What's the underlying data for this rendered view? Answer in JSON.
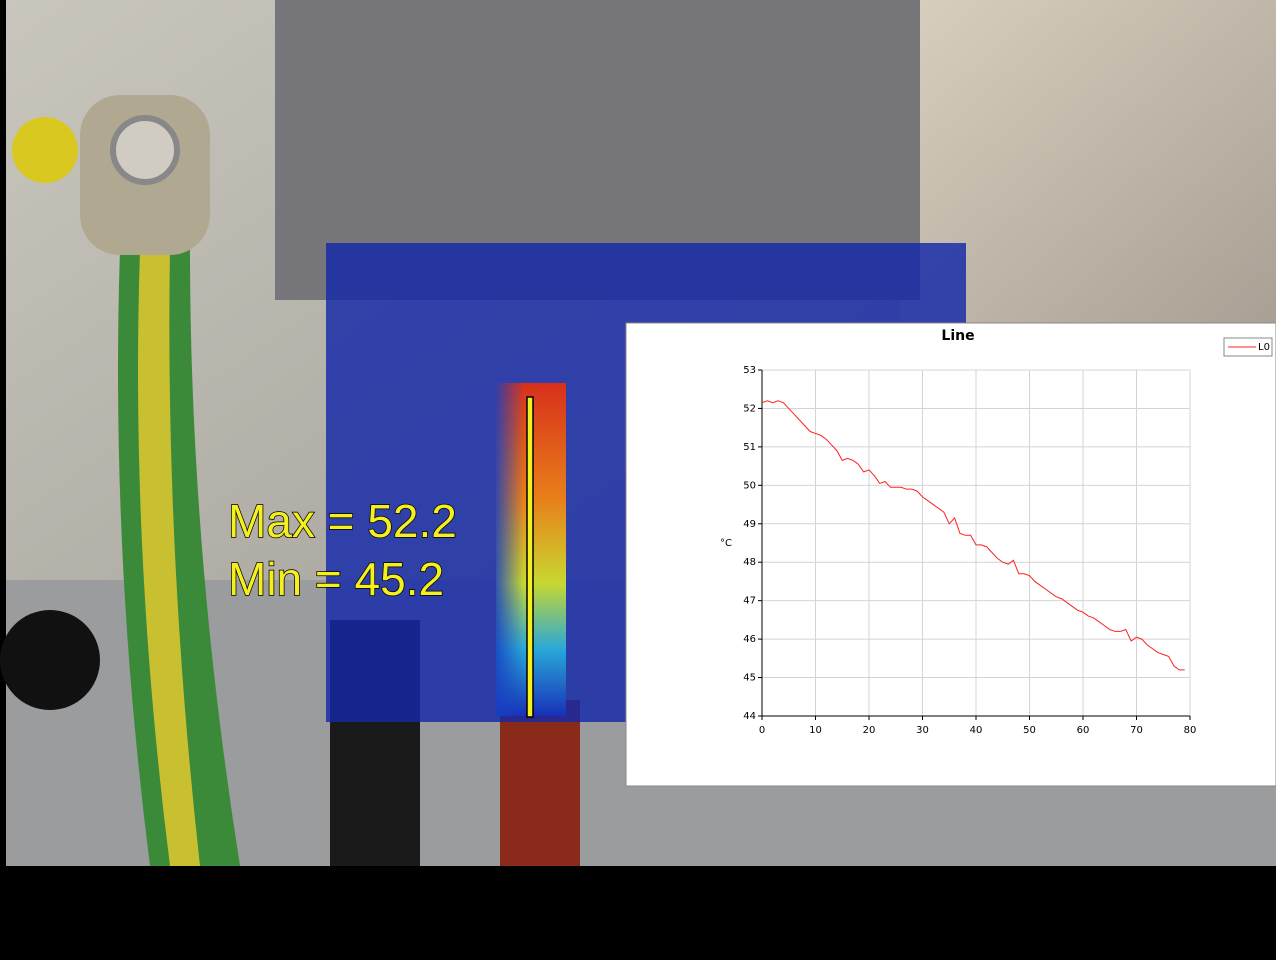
{
  "overlay": {
    "max_label": "Max = 52.2",
    "min_label": "Min = 45.2"
  },
  "chart_data": {
    "type": "line",
    "title": "Line",
    "y_label": "°C",
    "x": [
      0,
      1,
      2,
      3,
      4,
      5,
      6,
      7,
      8,
      9,
      10,
      11,
      12,
      13,
      14,
      15,
      16,
      17,
      18,
      19,
      20,
      21,
      22,
      23,
      24,
      25,
      26,
      27,
      28,
      29,
      30,
      31,
      32,
      33,
      34,
      35,
      36,
      37,
      38,
      39,
      40,
      41,
      42,
      43,
      44,
      45,
      46,
      47,
      48,
      49,
      50,
      51,
      52,
      53,
      54,
      55,
      56,
      57,
      58,
      59,
      60,
      61,
      62,
      63,
      64,
      65,
      66,
      67,
      68,
      69,
      70,
      71,
      72,
      73,
      74,
      75,
      76,
      77,
      78,
      79
    ],
    "series": [
      {
        "name": "L0",
        "color": "#ff2020",
        "values": [
          52.15,
          52.2,
          52.15,
          52.2,
          52.15,
          52.0,
          51.85,
          51.7,
          51.55,
          51.4,
          51.35,
          51.3,
          51.2,
          51.05,
          50.9,
          50.65,
          50.7,
          50.65,
          50.55,
          50.35,
          50.4,
          50.25,
          50.05,
          50.1,
          49.95,
          49.95,
          49.95,
          49.9,
          49.9,
          49.85,
          49.7,
          49.6,
          49.5,
          49.4,
          49.3,
          49.0,
          49.15,
          48.75,
          48.7,
          48.7,
          48.45,
          48.45,
          48.4,
          48.25,
          48.1,
          48.0,
          47.95,
          48.05,
          47.7,
          47.7,
          47.65,
          47.5,
          47.4,
          47.3,
          47.2,
          47.1,
          47.05,
          46.95,
          46.85,
          46.75,
          46.7,
          46.6,
          46.55,
          46.45,
          46.35,
          46.25,
          46.2,
          46.2,
          46.25,
          45.95,
          46.05,
          46.0,
          45.85,
          45.75,
          45.65,
          45.6,
          45.55,
          45.3,
          45.2,
          45.2
        ]
      }
    ],
    "xlim": [
      0,
      80
    ],
    "xticks": [
      0,
      10,
      20,
      30,
      40,
      50,
      60,
      70,
      80
    ],
    "ylim": [
      44,
      53
    ],
    "yticks": [
      44,
      45,
      46,
      47,
      48,
      49,
      50,
      51,
      52,
      53
    ],
    "grid": true,
    "legend": "top-right"
  }
}
